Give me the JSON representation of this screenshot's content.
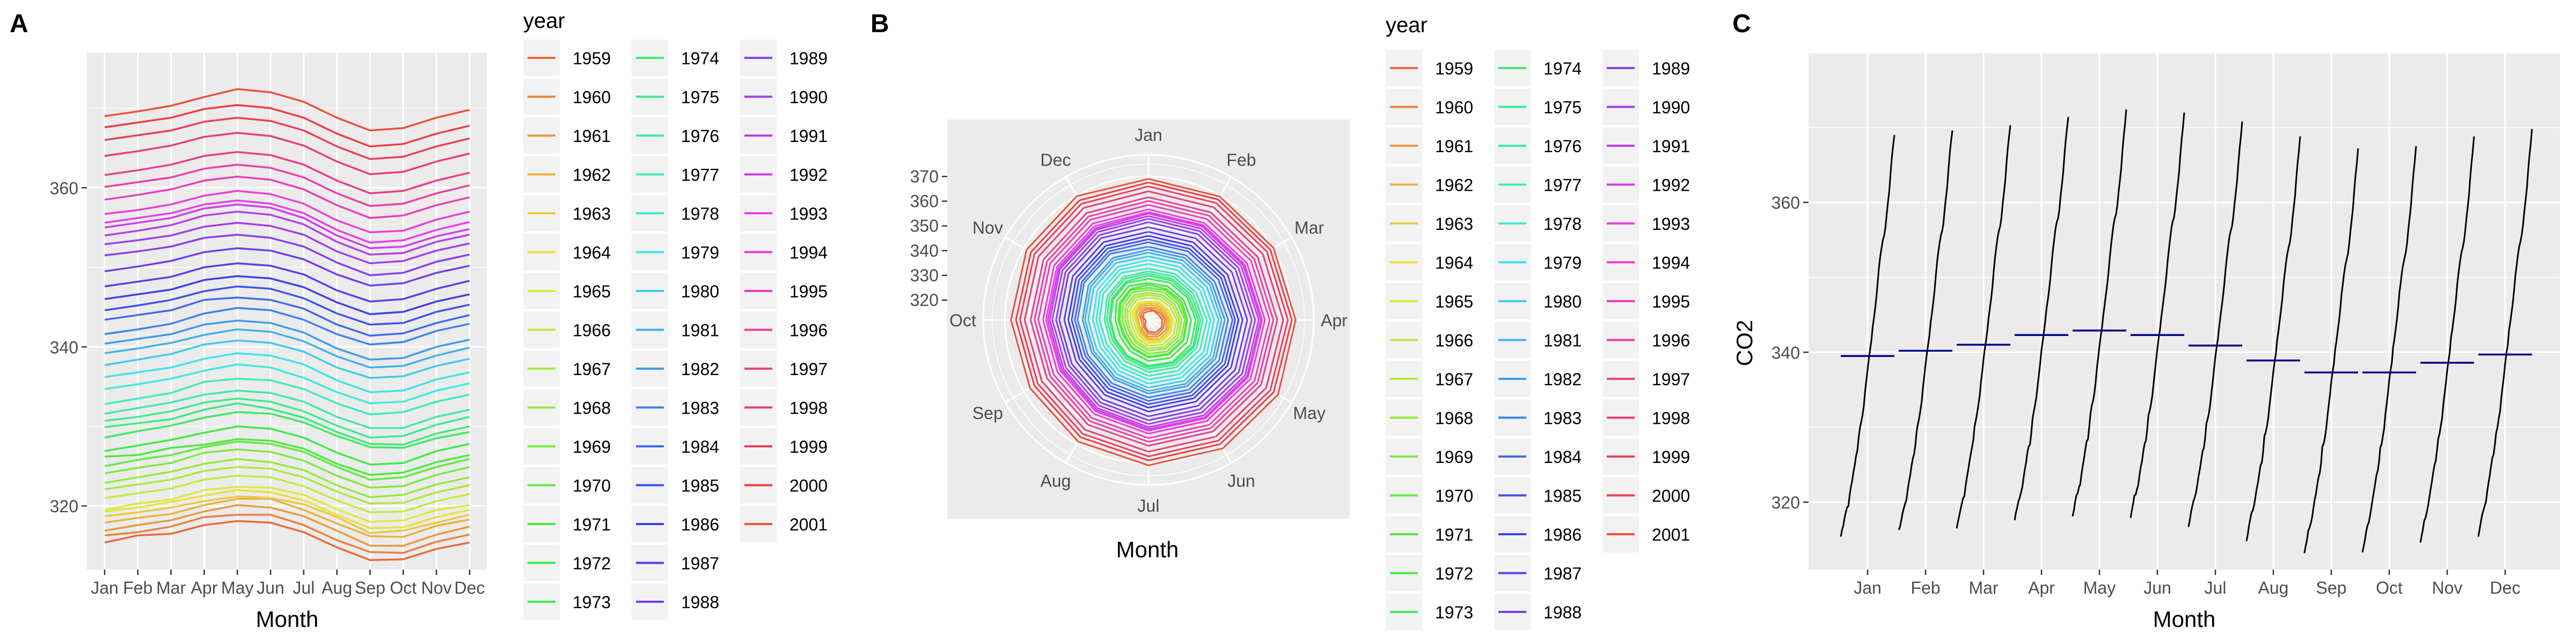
{
  "panels": [
    "A",
    "B",
    "C"
  ],
  "chart_data": [
    {
      "type": "line",
      "panel": "A",
      "xlabel": "Month",
      "ylabel": "",
      "categories": [
        "Jan",
        "Feb",
        "Mar",
        "Apr",
        "May",
        "Jun",
        "Jul",
        "Aug",
        "Sep",
        "Oct",
        "Nov",
        "Dec"
      ],
      "ylim": [
        312,
        377
      ],
      "yticks": [
        320,
        340,
        360
      ],
      "grid": true,
      "legend": {
        "title": "year",
        "placement": "right",
        "entries": [
          "1959",
          "1960",
          "1961",
          "1962",
          "1963",
          "1964",
          "1965",
          "1966",
          "1967",
          "1968",
          "1969",
          "1970",
          "1971",
          "1972",
          "1973",
          "1974",
          "1975",
          "1976",
          "1977",
          "1978",
          "1979",
          "1980",
          "1981",
          "1982",
          "1983",
          "1984",
          "1985",
          "1986",
          "1987",
          "1988",
          "1989",
          "1990",
          "1991",
          "1992",
          "1993",
          "1994",
          "1995",
          "1996",
          "1997",
          "1998",
          "1999",
          "2000",
          "2001"
        ]
      },
      "series": [
        {
          "name": "1959",
          "values": [
            315.4,
            316.3,
            316.5,
            317.6,
            318.1,
            317.9,
            316.7,
            314.8,
            313.2,
            313.3,
            314.6,
            315.4
          ]
        },
        {
          "name": "1960",
          "values": [
            316.3,
            316.7,
            317.4,
            318.6,
            318.9,
            318.9,
            317.6,
            315.7,
            314.2,
            314.1,
            315.5,
            316.4
          ]
        },
        {
          "name": "1961",
          "values": [
            316.9,
            317.6,
            318.2,
            319.3,
            320.1,
            319.8,
            318.7,
            316.9,
            315.0,
            315.0,
            316.4,
            317.4
          ]
        },
        {
          "name": "1962",
          "values": [
            317.9,
            318.5,
            319.0,
            320.1,
            320.9,
            320.9,
            319.5,
            317.8,
            316.2,
            316.1,
            317.5,
            318.3
          ]
        },
        {
          "name": "1963",
          "values": [
            318.7,
            319.2,
            319.8,
            320.6,
            321.2,
            321.0,
            320.2,
            318.6,
            316.6,
            316.9,
            317.9,
            318.9
          ]
        },
        {
          "name": "1964",
          "values": [
            319.3,
            319.8,
            320.5,
            321.3,
            322.0,
            321.7,
            320.7,
            318.9,
            317.2,
            317.3,
            318.6,
            319.5
          ]
        },
        {
          "name": "1965",
          "values": [
            319.5,
            320.3,
            320.8,
            322.0,
            322.4,
            322.3,
            321.4,
            319.6,
            318.0,
            318.2,
            319.5,
            320.1
          ]
        },
        {
          "name": "1966",
          "values": [
            321.0,
            321.6,
            322.2,
            323.3,
            323.8,
            323.6,
            322.5,
            320.7,
            319.2,
            319.3,
            320.6,
            321.5
          ]
        },
        {
          "name": "1967",
          "values": [
            322.1,
            322.7,
            323.3,
            324.4,
            324.9,
            324.7,
            323.6,
            321.8,
            320.3,
            320.4,
            321.7,
            322.6
          ]
        },
        {
          "name": "1968",
          "values": [
            322.9,
            323.6,
            324.3,
            325.3,
            325.9,
            325.5,
            324.5,
            322.6,
            321.1,
            321.4,
            322.7,
            323.6
          ]
        },
        {
          "name": "1969",
          "values": [
            324.1,
            324.8,
            325.4,
            326.7,
            327.1,
            326.8,
            325.7,
            323.8,
            322.3,
            322.5,
            323.9,
            324.9
          ]
        },
        {
          "name": "1970",
          "values": [
            325.0,
            325.8,
            326.4,
            327.4,
            328.1,
            327.8,
            326.8,
            324.9,
            323.3,
            323.6,
            324.9,
            325.9
          ]
        },
        {
          "name": "1971",
          "values": [
            326.2,
            326.4,
            327.3,
            327.7,
            328.4,
            328.2,
            327.2,
            325.3,
            323.9,
            324.2,
            325.5,
            326.4
          ]
        },
        {
          "name": "1972",
          "values": [
            326.9,
            327.6,
            328.3,
            329.2,
            330.0,
            329.7,
            328.6,
            326.7,
            325.2,
            325.4,
            326.9,
            327.8
          ]
        },
        {
          "name": "1973",
          "values": [
            328.6,
            329.4,
            330.1,
            331.1,
            331.8,
            331.6,
            330.5,
            328.8,
            327.4,
            327.3,
            328.5,
            329.3
          ]
        },
        {
          "name": "1974",
          "values": [
            329.9,
            330.4,
            330.9,
            332.1,
            332.9,
            332.2,
            331.1,
            329.3,
            327.8,
            327.7,
            329.1,
            330.0
          ]
        },
        {
          "name": "1975",
          "values": [
            330.7,
            331.2,
            331.9,
            333.0,
            333.5,
            333.1,
            331.9,
            330.1,
            328.6,
            328.8,
            330.2,
            331.2
          ]
        },
        {
          "name": "1976",
          "values": [
            331.6,
            332.3,
            333.0,
            334.0,
            334.5,
            334.2,
            333.1,
            331.2,
            329.8,
            329.8,
            331.2,
            332.1
          ]
        },
        {
          "name": "1977",
          "values": [
            332.8,
            333.5,
            334.2,
            335.6,
            336.0,
            335.8,
            334.7,
            332.9,
            331.5,
            331.8,
            333.1,
            334.0
          ]
        },
        {
          "name": "1978",
          "values": [
            334.7,
            335.3,
            336.0,
            337.0,
            337.8,
            337.4,
            336.1,
            334.3,
            332.9,
            333.1,
            334.5,
            335.4
          ]
        },
        {
          "name": "1979",
          "values": [
            336.2,
            336.8,
            337.4,
            338.5,
            339.2,
            338.9,
            337.8,
            335.8,
            334.3,
            334.5,
            335.9,
            336.8
          ]
        },
        {
          "name": "1980",
          "values": [
            337.7,
            338.4,
            339.1,
            340.3,
            340.8,
            340.5,
            339.4,
            337.4,
            336.1,
            336.3,
            337.6,
            338.5
          ]
        },
        {
          "name": "1981",
          "values": [
            339.2,
            339.8,
            340.5,
            341.5,
            342.2,
            341.9,
            340.7,
            338.8,
            337.4,
            337.6,
            338.9,
            339.9
          ]
        },
        {
          "name": "1982",
          "values": [
            340.4,
            341.0,
            341.6,
            342.8,
            343.3,
            343.0,
            341.8,
            339.8,
            338.4,
            338.6,
            340.0,
            340.9
          ]
        },
        {
          "name": "1983",
          "values": [
            341.6,
            342.2,
            342.9,
            344.2,
            344.9,
            344.6,
            343.4,
            341.6,
            340.3,
            340.6,
            342.0,
            342.9
          ]
        },
        {
          "name": "1984",
          "values": [
            343.4,
            344.0,
            344.6,
            345.9,
            346.2,
            345.9,
            344.8,
            342.8,
            341.4,
            341.7,
            343.0,
            344.0
          ]
        },
        {
          "name": "1985",
          "values": [
            344.6,
            345.2,
            345.9,
            347.0,
            347.6,
            347.3,
            346.1,
            344.2,
            342.8,
            343.0,
            344.4,
            345.3
          ]
        },
        {
          "name": "1986",
          "values": [
            346.0,
            346.6,
            347.2,
            348.4,
            348.9,
            348.6,
            347.5,
            345.6,
            344.1,
            344.4,
            345.7,
            346.6
          ]
        },
        {
          "name": "1987",
          "values": [
            347.6,
            348.2,
            348.8,
            350.0,
            350.5,
            350.2,
            349.1,
            347.1,
            345.7,
            346.0,
            347.3,
            348.3
          ]
        },
        {
          "name": "1988",
          "values": [
            349.5,
            350.1,
            350.8,
            351.9,
            352.4,
            352.1,
            351.0,
            349.1,
            347.7,
            348.0,
            349.3,
            350.2
          ]
        },
        {
          "name": "1989",
          "values": [
            351.5,
            352.0,
            352.6,
            353.7,
            354.1,
            353.7,
            352.6,
            350.6,
            349.0,
            349.3,
            350.7,
            351.6
          ]
        },
        {
          "name": "1990",
          "values": [
            352.9,
            353.4,
            354.0,
            355.1,
            355.6,
            355.2,
            354.1,
            352.0,
            350.5,
            350.8,
            352.1,
            353.0
          ]
        },
        {
          "name": "1991",
          "values": [
            354.0,
            354.6,
            355.3,
            356.5,
            357.0,
            356.6,
            355.4,
            353.2,
            351.6,
            351.8,
            353.2,
            354.1
          ]
        },
        {
          "name": "1992",
          "values": [
            355.0,
            355.6,
            356.2,
            357.4,
            357.9,
            357.5,
            356.2,
            354.0,
            352.4,
            352.6,
            353.9,
            354.8
          ]
        },
        {
          "name": "1993",
          "values": [
            355.6,
            356.2,
            356.8,
            357.9,
            358.4,
            358.0,
            356.8,
            354.7,
            353.1,
            353.4,
            354.7,
            355.7
          ]
        },
        {
          "name": "1994",
          "values": [
            356.7,
            357.2,
            357.9,
            359.0,
            359.6,
            359.2,
            358.0,
            355.9,
            354.4,
            354.6,
            356.0,
            357.0
          ]
        },
        {
          "name": "1995",
          "values": [
            358.5,
            359.1,
            359.8,
            360.9,
            361.4,
            361.0,
            359.8,
            357.8,
            356.2,
            356.5,
            357.8,
            358.8
          ]
        },
        {
          "name": "1996",
          "values": [
            360.1,
            360.7,
            361.3,
            362.4,
            362.9,
            362.5,
            361.3,
            359.3,
            357.7,
            358.0,
            359.3,
            360.3
          ]
        },
        {
          "name": "1997",
          "values": [
            361.6,
            362.2,
            362.9,
            364.0,
            364.5,
            364.1,
            362.9,
            360.9,
            359.3,
            359.6,
            360.9,
            361.9
          ]
        },
        {
          "name": "1998",
          "values": [
            364.0,
            364.6,
            365.3,
            366.4,
            366.9,
            366.5,
            365.3,
            363.3,
            361.7,
            362.0,
            363.3,
            364.3
          ]
        },
        {
          "name": "1999",
          "values": [
            366.0,
            366.6,
            367.2,
            368.3,
            368.8,
            368.4,
            367.2,
            365.2,
            363.6,
            363.9,
            365.2,
            366.2
          ]
        },
        {
          "name": "2000",
          "values": [
            367.6,
            368.2,
            368.8,
            369.9,
            370.4,
            370.0,
            368.8,
            366.8,
            365.2,
            365.5,
            366.8,
            367.8
          ]
        },
        {
          "name": "2001",
          "values": [
            369.0,
            369.6,
            370.3,
            371.4,
            372.4,
            372.0,
            370.8,
            368.8,
            367.2,
            367.5,
            368.8,
            369.8
          ]
        }
      ]
    },
    {
      "type": "line",
      "panel": "B",
      "coordinates": "polar",
      "xlabel": "Month",
      "categories": [
        "Jan",
        "Feb",
        "Mar",
        "Apr",
        "May",
        "Jun",
        "Jul",
        "Aug",
        "Sep",
        "Oct",
        "Nov",
        "Dec"
      ],
      "rlim": [
        312,
        377
      ],
      "rticks": [
        320,
        330,
        340,
        350,
        360,
        370
      ],
      "same_series_as_panel": "A",
      "legend": {
        "title": "year",
        "placement": "right",
        "entries": [
          "1959",
          "1960",
          "1961",
          "1962",
          "1963",
          "1964",
          "1965",
          "1966",
          "1967",
          "1968",
          "1969",
          "1970",
          "1971",
          "1972",
          "1973",
          "1974",
          "1975",
          "1976",
          "1977",
          "1978",
          "1979",
          "1980",
          "1981",
          "1982",
          "1983",
          "1984",
          "1985",
          "1986",
          "1987",
          "1988",
          "1989",
          "1990",
          "1991",
          "1992",
          "1993",
          "1994",
          "1995",
          "1996",
          "1997",
          "1998",
          "1999",
          "2000",
          "2001"
        ]
      }
    },
    {
      "type": "line",
      "panel": "C",
      "xlabel": "Month",
      "ylabel": "CO2",
      "categories": [
        "Jan",
        "Feb",
        "Mar",
        "Apr",
        "May",
        "Jun",
        "Jul",
        "Aug",
        "Sep",
        "Oct",
        "Nov",
        "Dec"
      ],
      "ylim": [
        311,
        380
      ],
      "yticks": [
        320,
        340,
        360
      ],
      "monthly_means": [
        339.5,
        340.2,
        341.0,
        342.3,
        342.9,
        342.3,
        340.9,
        338.9,
        337.3,
        337.3,
        338.6,
        339.7
      ],
      "mean_line_color": "#00008b",
      "series_color": "#000000"
    }
  ]
}
